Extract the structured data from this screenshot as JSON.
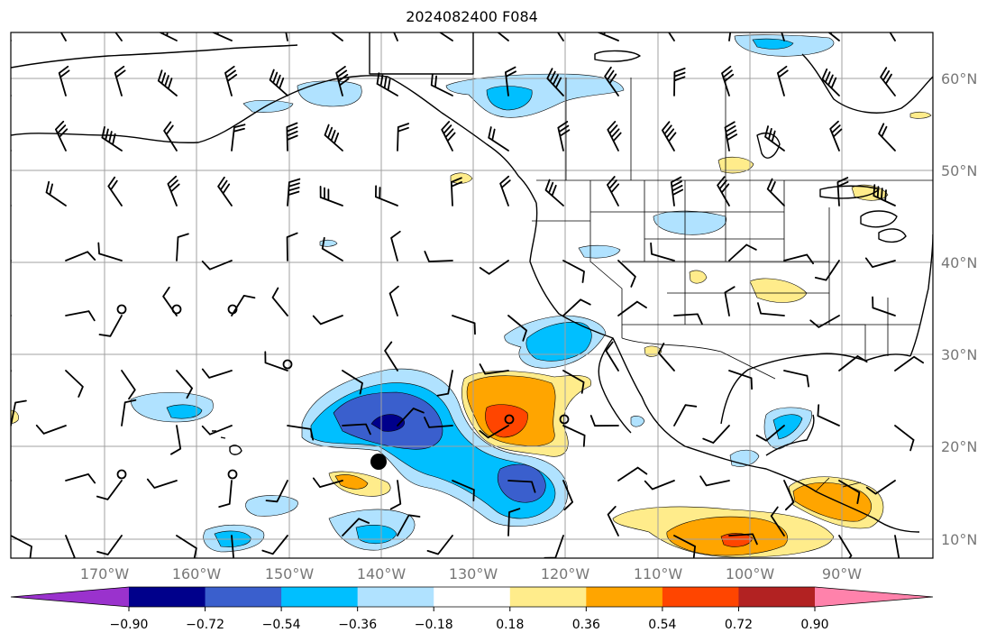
{
  "title": "2024082400 F084",
  "map": {
    "lat_labels": [
      "60°N",
      "50°N",
      "40°N",
      "30°N",
      "20°N",
      "10°N"
    ],
    "lon_labels": [
      "170°W",
      "160°W",
      "150°W",
      "140°W",
      "130°W",
      "120°W",
      "110°W",
      "100°W",
      "90°W"
    ],
    "lat_range": [
      8,
      65
    ],
    "lon_range": [
      -180,
      -80
    ],
    "grid": true
  },
  "colorbar": {
    "ticks": [
      "−0.90",
      "−0.72",
      "−0.54",
      "−0.36",
      "−0.18",
      "0.18",
      "0.36",
      "0.54",
      "0.72",
      "0.90"
    ],
    "colors": [
      "#9a32cd",
      "#00008b",
      "#3a5fcd",
      "#00bfff",
      "#b0e2ff",
      "#ffffff",
      "#ffec8b",
      "#ffa500",
      "#ff4500",
      "#b22222",
      "#ff82ab"
    ]
  },
  "storm_marker": {
    "lat": 18.3,
    "lon": -140.0
  }
}
